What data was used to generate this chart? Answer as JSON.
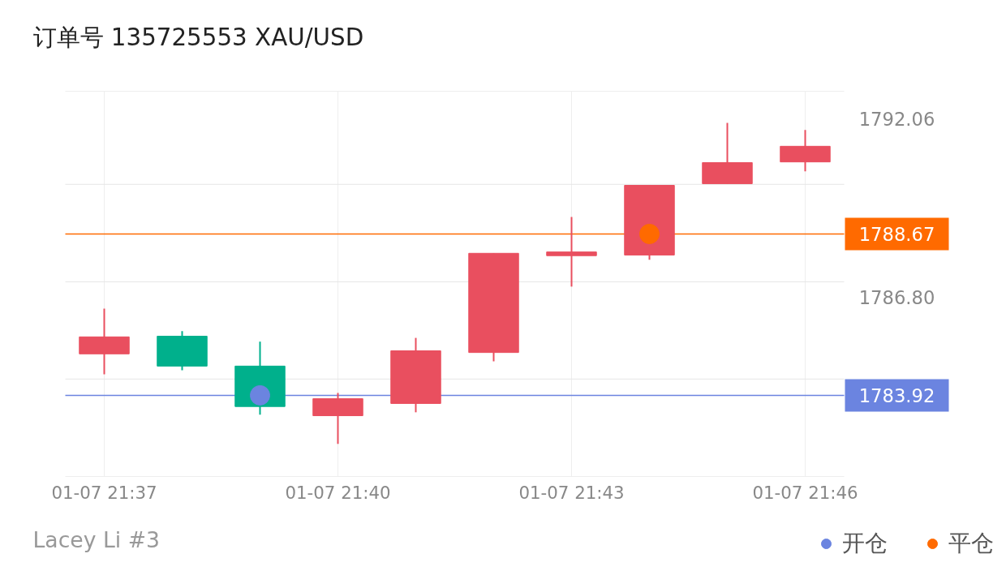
{
  "chart_data": {
    "type": "candlestick",
    "title": "订单号 135725553    XAU/USD",
    "categories": [
      "01-07 21:37",
      null,
      null,
      "01-07 21:40",
      null,
      null,
      "01-07 21:43",
      null,
      null,
      "01-07 21:46"
    ],
    "ohlc": [
      [
        1785.14,
        1786.47,
        1784.54,
        1785.64
      ],
      [
        1785.66,
        1785.81,
        1784.66,
        1784.78
      ],
      [
        1784.78,
        1785.5,
        1783.35,
        1783.59
      ],
      [
        1783.32,
        1783.99,
        1782.49,
        1783.82
      ],
      [
        1783.68,
        1785.61,
        1783.42,
        1785.23
      ],
      [
        1785.18,
        1788.1,
        1784.92,
        1788.1
      ],
      [
        1788.03,
        1789.17,
        1787.12,
        1788.14
      ],
      [
        1788.05,
        1790.1,
        1787.91,
        1790.1
      ],
      [
        1790.15,
        1791.94,
        1790.15,
        1790.77
      ],
      [
        1790.79,
        1791.73,
        1790.51,
        1791.25
      ]
    ],
    "colors": [
      "#e94f5f",
      "#00b08c",
      "#00b08c",
      "#e94f5f",
      "#e94f5f",
      "#e94f5f",
      "#e94f5f",
      "#e94f5f",
      "#e94f5f",
      "#e94f5f"
    ],
    "series": [
      {
        "name": "开仓",
        "type": "scatter",
        "color": "#6b84e0",
        "values": [
          null,
          null,
          1783.92,
          null,
          null,
          null,
          null,
          null,
          null,
          null
        ]
      },
      {
        "name": "平仓",
        "type": "scatter",
        "color": "#ff6a00",
        "values": [
          null,
          null,
          null,
          null,
          null,
          null,
          null,
          1788.67,
          null,
          null
        ]
      }
    ],
    "marker": "circle",
    "ylim": [
      1781.53,
      1792.87
    ],
    "yticks": [
      1792.06,
      {
        "value": 1786.8,
        "label": "1786.80"
      },
      {
        "value": 1790.13,
        "label": null
      },
      {
        "value": 1787.26,
        "label": null
      },
      {
        "value": 1784.4,
        "label": null
      }
    ],
    "ref_lines": [
      {
        "axis": "y",
        "value": 1788.67,
        "label": "1788.67",
        "color": "#ff6a00"
      },
      {
        "axis": "y",
        "value": 1783.92,
        "label": "1783.92",
        "color": "#6b84e0"
      }
    ],
    "grid": true,
    "legend": "bottom right",
    "annotations": [
      "Lacey Li #3"
    ]
  }
}
